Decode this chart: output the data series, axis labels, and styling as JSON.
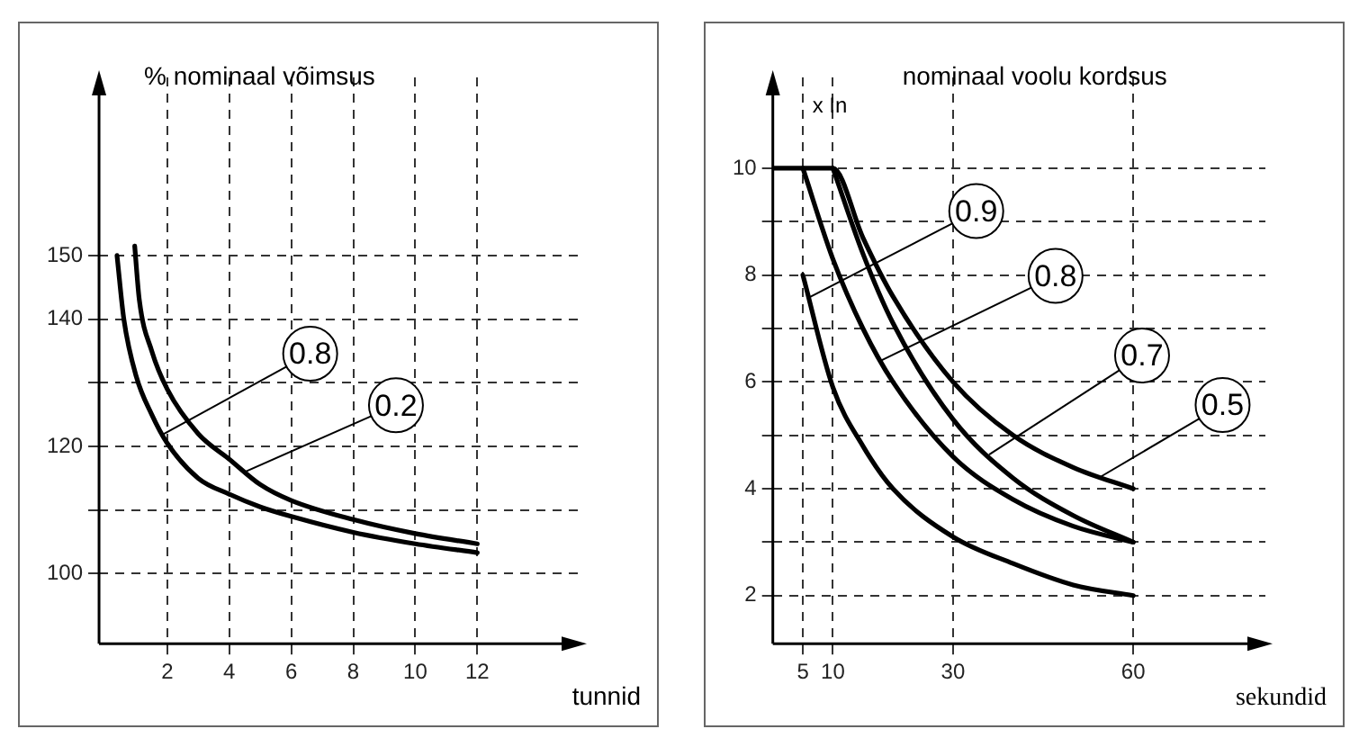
{
  "chart_data": [
    {
      "type": "line",
      "title": "% nominaal võimsus",
      "xlabel": "tunnid",
      "xlim": [
        -0.2,
        15.3
      ],
      "ylim": [
        89,
        178
      ],
      "xticks": [
        2,
        4,
        6,
        8,
        10,
        12
      ],
      "yticks": [
        100,
        {
          "value": 110,
          "label": null
        },
        120,
        {
          "value": 130,
          "label": null
        },
        140,
        150
      ],
      "grid": true,
      "legend": false,
      "marker": "none",
      "line_style": "solid",
      "series": [
        {
          "name": "0.8",
          "color": "#000000",
          "x": [
            0.38,
            0.6,
            1,
            1.5,
            2,
            3,
            4,
            5,
            6,
            8,
            10,
            12
          ],
          "values": [
            150,
            140,
            131,
            125,
            120.5,
            115,
            112.5,
            110.5,
            109,
            106.5,
            104.7,
            103.3
          ]
        },
        {
          "name": "0.2",
          "color": "#000000",
          "x": [
            0.95,
            1.1,
            1.5,
            2,
            3,
            4,
            5,
            6,
            8,
            10,
            12
          ],
          "values": [
            151.5,
            143,
            135,
            129,
            122,
            118,
            114,
            111.5,
            108.5,
            106.3,
            104.7
          ]
        }
      ]
    },
    {
      "type": "line",
      "title": "nominaal voolu kordsus",
      "ylabel": "x In",
      "xlabel": "sekundid",
      "xlim": [
        0,
        82
      ],
      "ylim": [
        1.1,
        11.7
      ],
      "xticks": [
        5,
        10,
        30,
        60
      ],
      "yticks": [
        2,
        {
          "value": 3,
          "label": null
        },
        4,
        {
          "value": 5,
          "label": null
        },
        6,
        {
          "value": 7,
          "label": null
        },
        8,
        {
          "value": 9,
          "label": null
        },
        10
      ],
      "grid": true,
      "legend": false,
      "marker": "none",
      "line_style": "solid",
      "series": [
        {
          "name": "0.9",
          "color": "#000000",
          "x": [
            5,
            10,
            15,
            20,
            30,
            40,
            50,
            60
          ],
          "values": [
            8,
            5.9,
            4.8,
            4,
            3.1,
            2.6,
            2.2,
            2
          ]
        },
        {
          "name": "0.8",
          "color": "#000000",
          "x": [
            5,
            10,
            15,
            20,
            30,
            40,
            50,
            60
          ],
          "values": [
            10,
            8.3,
            7,
            6,
            4.6,
            3.8,
            3.3,
            3
          ]
        },
        {
          "name": "0.7",
          "color": "#000000",
          "x": [
            10,
            15,
            20,
            30,
            40,
            50,
            60
          ],
          "values": [
            10,
            8.4,
            7.1,
            5.3,
            4.2,
            3.5,
            3
          ]
        },
        {
          "name": "0.5",
          "color": "#000000",
          "x": [
            0,
            10,
            15,
            20,
            30,
            40,
            50,
            60
          ],
          "values": [
            10,
            10,
            8.7,
            7.6,
            6,
            5,
            4.4,
            4
          ]
        }
      ]
    }
  ]
}
